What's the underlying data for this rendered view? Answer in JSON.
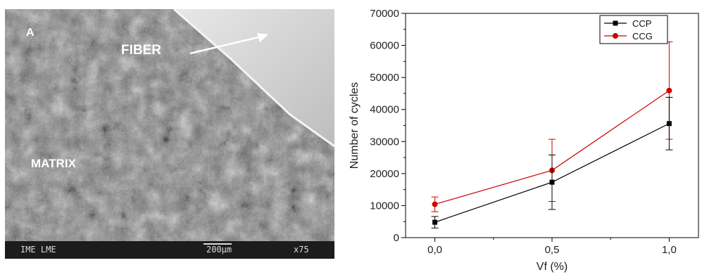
{
  "sem": {
    "panel_letter": "A",
    "fiber_label": "FIBER",
    "matrix_label": "MATRIX",
    "footer_left": "IME LME",
    "scale_text": "200µm",
    "magnification": "x75"
  },
  "chart_data": {
    "type": "line",
    "xlabel": "Vf (%)",
    "ylabel": "Number of cycles",
    "x": [
      0.0,
      0.5,
      1.0
    ],
    "x_tick_labels": [
      "0,0",
      "0,5",
      "1,0"
    ],
    "xlim": [
      -0.125,
      1.125
    ],
    "ylim": [
      0,
      70000
    ],
    "y_ticks": [
      0,
      10000,
      20000,
      30000,
      40000,
      50000,
      60000,
      70000
    ],
    "y_tick_labels": [
      "0",
      "10000",
      "20000",
      "30000",
      "40000",
      "50000",
      "60000",
      "70000"
    ],
    "legend_position": "top-right",
    "grid": false,
    "series": [
      {
        "name": "CCP",
        "color": "#000000",
        "marker": "square",
        "values": [
          4800,
          17300,
          35600
        ],
        "error": [
          1800,
          8500,
          8200
        ]
      },
      {
        "name": "CCG",
        "color": "#cc0000",
        "marker": "circle",
        "values": [
          10400,
          21000,
          45900
        ],
        "error": [
          2300,
          9700,
          15200
        ]
      }
    ]
  }
}
